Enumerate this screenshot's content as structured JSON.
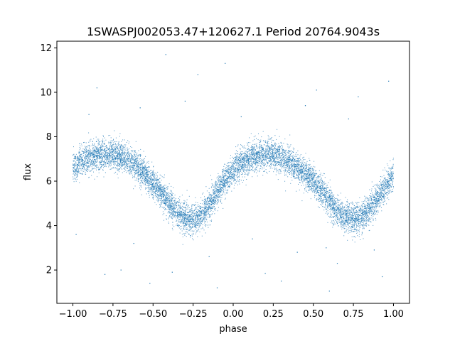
{
  "chart_data": {
    "type": "scatter",
    "title": "1SWASPJ002053.47+120627.1 Period 20764.9043s",
    "xlabel": "phase",
    "ylabel": "flux",
    "xlim": [
      -1.1,
      1.1
    ],
    "ylim": [
      0.5,
      12.3
    ],
    "xticks": [
      -1.0,
      -0.75,
      -0.5,
      -0.25,
      0.0,
      0.25,
      0.5,
      0.75,
      1.0
    ],
    "xtick_labels": [
      "−1.00",
      "−0.75",
      "−0.50",
      "−0.25",
      "0.00",
      "0.25",
      "0.50",
      "0.75",
      "1.00"
    ],
    "yticks": [
      2,
      4,
      6,
      8,
      10,
      12
    ],
    "ytick_labels": [
      "2",
      "4",
      "6",
      "8",
      "10",
      "12"
    ],
    "grid": false,
    "point_color": "#1f77b4",
    "series": [
      {
        "phase": [
          -1.0,
          -0.95,
          -0.9,
          -0.85,
          -0.8,
          -0.75,
          -0.7,
          -0.65,
          -0.6,
          -0.55,
          -0.5,
          -0.45,
          -0.4,
          -0.35,
          -0.3,
          -0.25,
          -0.2,
          -0.15,
          -0.1,
          -0.05,
          0.0,
          0.05,
          0.1,
          0.15,
          0.2,
          0.25,
          0.3,
          0.35,
          0.4,
          0.45,
          0.5,
          0.55,
          0.6,
          0.65,
          0.7,
          0.75,
          0.8,
          0.85,
          0.9,
          0.95,
          1.0
        ],
        "flux": [
          6.6,
          6.9,
          7.05,
          7.15,
          7.2,
          7.2,
          7.1,
          6.9,
          6.7,
          6.3,
          5.9,
          5.45,
          5.0,
          4.6,
          4.35,
          4.3,
          4.45,
          4.9,
          5.5,
          6.1,
          6.5,
          6.8,
          7.0,
          7.15,
          7.2,
          7.2,
          7.05,
          6.85,
          6.6,
          6.35,
          6.0,
          5.55,
          5.05,
          4.6,
          4.35,
          4.3,
          4.4,
          4.75,
          5.2,
          5.75,
          6.3
        ],
        "scatter_sd": 0.33,
        "n_points": 9000
      }
    ],
    "outliers": [
      {
        "x": -0.8,
        "y": 1.8
      },
      {
        "x": 0.2,
        "y": 1.85
      },
      {
        "x": -0.05,
        "y": 11.3
      },
      {
        "x": -0.42,
        "y": 11.7
      },
      {
        "x": 0.97,
        "y": 10.5
      },
      {
        "x": 0.93,
        "y": 1.7
      },
      {
        "x": -0.62,
        "y": 3.2
      },
      {
        "x": 0.4,
        "y": 2.8
      },
      {
        "x": -0.9,
        "y": 9.0
      },
      {
        "x": 0.6,
        "y": 1.05
      },
      {
        "x": -0.3,
        "y": 9.6
      },
      {
        "x": 0.65,
        "y": 2.3
      },
      {
        "x": -0.52,
        "y": 1.4
      },
      {
        "x": 0.05,
        "y": 8.9
      },
      {
        "x": 0.52,
        "y": 10.1
      },
      {
        "x": -0.15,
        "y": 2.6
      },
      {
        "x": 0.78,
        "y": 9.8
      },
      {
        "x": -0.7,
        "y": 2.0
      },
      {
        "x": 0.3,
        "y": 1.5
      },
      {
        "x": -0.98,
        "y": 3.6
      },
      {
        "x": 0.88,
        "y": 2.9
      },
      {
        "x": -0.22,
        "y": 10.8
      },
      {
        "x": 0.12,
        "y": 3.4
      },
      {
        "x": -0.58,
        "y": 9.3
      },
      {
        "x": 0.45,
        "y": 9.4
      },
      {
        "x": -0.38,
        "y": 1.9
      },
      {
        "x": 0.72,
        "y": 8.8
      },
      {
        "x": -0.85,
        "y": 10.2
      },
      {
        "x": 0.58,
        "y": 3.0
      },
      {
        "x": -0.1,
        "y": 1.2
      }
    ]
  }
}
